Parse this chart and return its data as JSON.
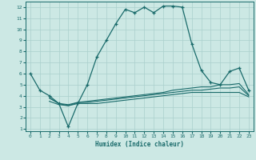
{
  "xlabel": "Humidex (Indice chaleur)",
  "background_color": "#cce8e4",
  "line_color": "#1a6b6b",
  "grid_color": "#aacfcc",
  "xlim": [
    -0.5,
    23.5
  ],
  "ylim": [
    0.8,
    12.5
  ],
  "xticks": [
    0,
    1,
    2,
    3,
    4,
    5,
    6,
    7,
    8,
    9,
    10,
    11,
    12,
    13,
    14,
    15,
    16,
    17,
    18,
    19,
    20,
    21,
    22,
    23
  ],
  "yticks": [
    1,
    2,
    3,
    4,
    5,
    6,
    7,
    8,
    9,
    10,
    11,
    12
  ],
  "line1_x": [
    0,
    1,
    2,
    3,
    4,
    5,
    6,
    7,
    8,
    9,
    10,
    11,
    12,
    13,
    14,
    15,
    16,
    17,
    18,
    19,
    20,
    21,
    22,
    23
  ],
  "line1_y": [
    6.0,
    4.5,
    4.0,
    3.3,
    1.2,
    3.3,
    5.0,
    7.5,
    9.0,
    10.5,
    11.8,
    11.5,
    12.0,
    11.5,
    12.1,
    12.1,
    12.0,
    8.7,
    6.3,
    5.2,
    5.0,
    6.2,
    6.5,
    4.5
  ],
  "line2_x": [
    2,
    3,
    4,
    5,
    6,
    7,
    8,
    9,
    10,
    11,
    12,
    13,
    14,
    15,
    16,
    17,
    18,
    19,
    20,
    21,
    22,
    23
  ],
  "line2_y": [
    3.8,
    3.3,
    3.1,
    3.4,
    3.5,
    3.6,
    3.7,
    3.8,
    3.9,
    4.0,
    4.1,
    4.2,
    4.3,
    4.5,
    4.6,
    4.7,
    4.8,
    4.8,
    5.0,
    5.0,
    5.1,
    4.1
  ],
  "line3_x": [
    2,
    3,
    4,
    5,
    6,
    7,
    8,
    9,
    10,
    11,
    12,
    13,
    14,
    15,
    16,
    17,
    18,
    19,
    20,
    21,
    22,
    23
  ],
  "line3_y": [
    3.8,
    3.3,
    3.2,
    3.4,
    3.4,
    3.5,
    3.6,
    3.7,
    3.8,
    3.9,
    4.0,
    4.1,
    4.2,
    4.3,
    4.4,
    4.5,
    4.5,
    4.6,
    4.7,
    4.7,
    4.8,
    4.0
  ],
  "line4_x": [
    2,
    3,
    4,
    5,
    6,
    7,
    8,
    9,
    10,
    11,
    12,
    13,
    14,
    15,
    16,
    17,
    18,
    19,
    20,
    21,
    22,
    23
  ],
  "line4_y": [
    3.5,
    3.2,
    3.1,
    3.3,
    3.3,
    3.3,
    3.4,
    3.5,
    3.6,
    3.7,
    3.8,
    3.9,
    4.0,
    4.1,
    4.2,
    4.3,
    4.3,
    4.3,
    4.3,
    4.3,
    4.3,
    3.9
  ]
}
